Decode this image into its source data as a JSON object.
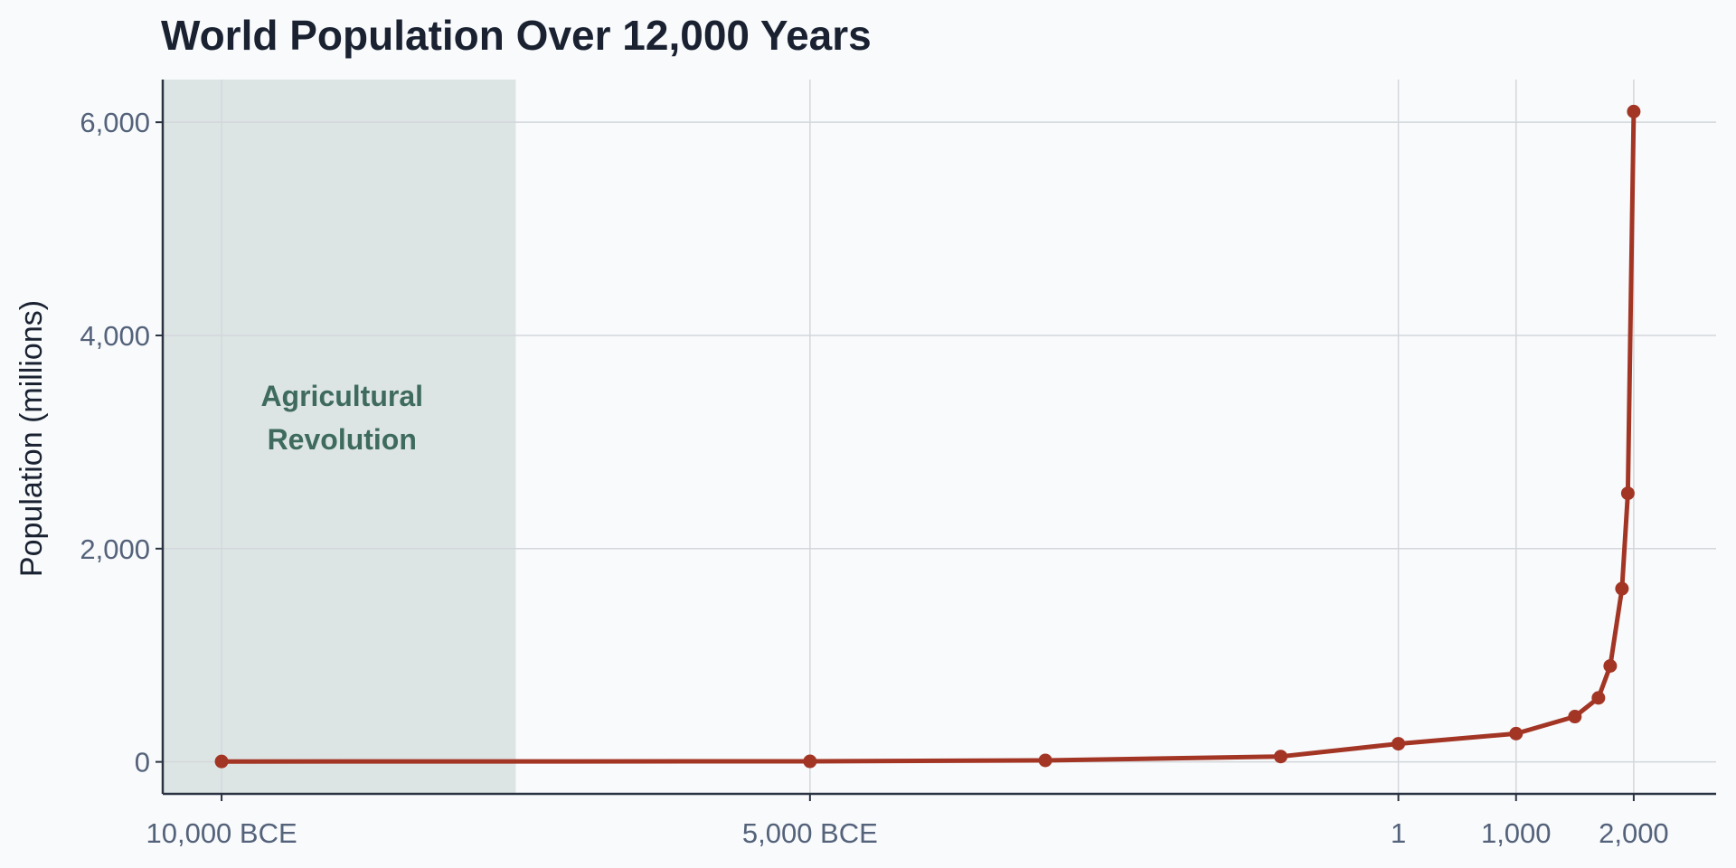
{
  "chart_data": {
    "type": "line",
    "title": "World Population Over 12,000 Years",
    "xlabel": "",
    "ylabel": "Population (millions)",
    "xlim": [
      -10500,
      2700
    ],
    "ylim": [
      -300,
      6400
    ],
    "x_ticks": [
      {
        "value": -10000,
        "label": "10,000 BCE"
      },
      {
        "value": -5000,
        "label": "5,000 BCE"
      },
      {
        "value": 0,
        "label": "1"
      },
      {
        "value": 1000,
        "label": "1,000"
      },
      {
        "value": 2000,
        "label": "2,000"
      }
    ],
    "y_ticks": [
      {
        "value": 0,
        "label": "0"
      },
      {
        "value": 2000,
        "label": "2,000"
      },
      {
        "value": 4000,
        "label": "4,000"
      },
      {
        "value": 6000,
        "label": "6,000"
      }
    ],
    "grid": true,
    "shaded_region": {
      "x_start": -10500,
      "x_end": -7500,
      "label_lines": [
        "Agricultural",
        "Revolution"
      ],
      "label_y": 3500,
      "color": "#dde5e4"
    },
    "line_color": "#a33525",
    "series": [
      {
        "points": [
          {
            "x": -10000,
            "y": 4
          },
          {
            "x": -5000,
            "y": 5
          },
          {
            "x": -3000,
            "y": 14
          },
          {
            "x": -1000,
            "y": 50
          },
          {
            "x": 0,
            "y": 170
          },
          {
            "x": 1000,
            "y": 265
          },
          {
            "x": 1500,
            "y": 425
          },
          {
            "x": 1700,
            "y": 600
          },
          {
            "x": 1800,
            "y": 900
          },
          {
            "x": 1900,
            "y": 1625
          },
          {
            "x": 1950,
            "y": 2519
          },
          {
            "x": 2000,
            "y": 6100
          }
        ]
      }
    ]
  }
}
